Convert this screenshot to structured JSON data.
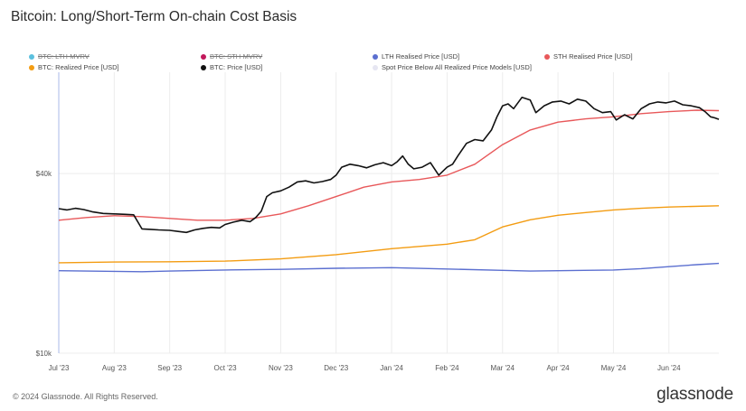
{
  "title": "Bitcoin: Long/Short-Term On-chain Cost Basis",
  "footer": "© 2024 Glassnode. All Rights Reserved.",
  "brand": "glassnode",
  "legend": [
    {
      "label": "BTC: LTH-MVRV",
      "color": "#5bc0de",
      "hidden": true
    },
    {
      "label": "BTC: STH-MVRV",
      "color": "#c2185b",
      "hidden": true
    },
    {
      "label": "LTH Realised Price [USD]",
      "color": "#5b6fd0",
      "hidden": false
    },
    {
      "label": "STH Realised Price [USD]",
      "color": "#e8585a",
      "hidden": false
    },
    {
      "label": "BTC: Realized Price [USD]",
      "color": "#f39c12",
      "hidden": false
    },
    {
      "label": "BTC: Price [USD]",
      "color": "#111111",
      "hidden": false
    },
    {
      "label": "Spot Price Below All Realized Price Models [USD]",
      "color": "#e6e6f2",
      "hidden": false
    }
  ],
  "chart_data": {
    "type": "line",
    "title": "Bitcoin: Long/Short-Term On-chain Cost Basis",
    "yscale": "log",
    "ylim": [
      10000,
      85000
    ],
    "y_ticks": [
      {
        "value": 40000,
        "label": "$40k"
      },
      {
        "value": 10000,
        "label": "$10k"
      }
    ],
    "x_ticks": [
      {
        "label": "Jul '23",
        "t": 0
      },
      {
        "label": "Aug '23",
        "t": 1
      },
      {
        "label": "Sep '23",
        "t": 2
      },
      {
        "label": "Oct '23",
        "t": 3
      },
      {
        "label": "Nov '23",
        "t": 4
      },
      {
        "label": "Dec '23",
        "t": 5
      },
      {
        "label": "Jan '24",
        "t": 6
      },
      {
        "label": "Feb '24",
        "t": 7
      },
      {
        "label": "Mar '24",
        "t": 8
      },
      {
        "label": "Apr '24",
        "t": 9
      },
      {
        "label": "May '24",
        "t": 10
      },
      {
        "label": "Jun '24",
        "t": 11
      }
    ],
    "xlim": [
      0,
      11.9
    ],
    "series": [
      {
        "name": "BTC: Price [USD]",
        "color": "#111111",
        "points": [
          [
            0,
            30500
          ],
          [
            0.15,
            30200
          ],
          [
            0.3,
            30600
          ],
          [
            0.45,
            30300
          ],
          [
            0.6,
            29800
          ],
          [
            0.8,
            29400
          ],
          [
            1.0,
            29300
          ],
          [
            1.2,
            29200
          ],
          [
            1.35,
            29100
          ],
          [
            1.5,
            26100
          ],
          [
            1.65,
            26000
          ],
          [
            1.8,
            25900
          ],
          [
            2.0,
            25800
          ],
          [
            2.15,
            25600
          ],
          [
            2.3,
            25400
          ],
          [
            2.45,
            25900
          ],
          [
            2.6,
            26200
          ],
          [
            2.75,
            26400
          ],
          [
            2.9,
            26300
          ],
          [
            3.0,
            27000
          ],
          [
            3.15,
            27500
          ],
          [
            3.3,
            27900
          ],
          [
            3.45,
            27600
          ],
          [
            3.55,
            28500
          ],
          [
            3.65,
            29900
          ],
          [
            3.75,
            33500
          ],
          [
            3.85,
            34500
          ],
          [
            4.0,
            35000
          ],
          [
            4.15,
            36000
          ],
          [
            4.3,
            37500
          ],
          [
            4.45,
            37800
          ],
          [
            4.6,
            37200
          ],
          [
            4.75,
            37600
          ],
          [
            4.9,
            38200
          ],
          [
            5.0,
            39500
          ],
          [
            5.1,
            42000
          ],
          [
            5.25,
            43000
          ],
          [
            5.4,
            42500
          ],
          [
            5.55,
            41800
          ],
          [
            5.7,
            42800
          ],
          [
            5.85,
            43500
          ],
          [
            6.0,
            42500
          ],
          [
            6.1,
            43800
          ],
          [
            6.2,
            45800
          ],
          [
            6.3,
            43000
          ],
          [
            6.4,
            41500
          ],
          [
            6.55,
            42000
          ],
          [
            6.7,
            43500
          ],
          [
            6.85,
            39500
          ],
          [
            7.0,
            42000
          ],
          [
            7.1,
            43000
          ],
          [
            7.2,
            46000
          ],
          [
            7.35,
            50500
          ],
          [
            7.5,
            52000
          ],
          [
            7.65,
            51500
          ],
          [
            7.8,
            56000
          ],
          [
            7.9,
            62000
          ],
          [
            8.0,
            67500
          ],
          [
            8.1,
            68500
          ],
          [
            8.2,
            66000
          ],
          [
            8.35,
            72000
          ],
          [
            8.5,
            70500
          ],
          [
            8.6,
            64000
          ],
          [
            8.75,
            67500
          ],
          [
            8.9,
            69500
          ],
          [
            9.05,
            70000
          ],
          [
            9.2,
            68500
          ],
          [
            9.35,
            71000
          ],
          [
            9.5,
            70000
          ],
          [
            9.65,
            66000
          ],
          [
            9.8,
            64000
          ],
          [
            9.95,
            64500
          ],
          [
            10.05,
            60500
          ],
          [
            10.2,
            63000
          ],
          [
            10.35,
            61000
          ],
          [
            10.5,
            66000
          ],
          [
            10.65,
            68500
          ],
          [
            10.8,
            69500
          ],
          [
            10.95,
            69000
          ],
          [
            11.1,
            70000
          ],
          [
            11.25,
            68000
          ],
          [
            11.4,
            67500
          ],
          [
            11.55,
            66500
          ],
          [
            11.65,
            64500
          ],
          [
            11.75,
            62000
          ],
          [
            11.82,
            61500
          ],
          [
            11.9,
            60800
          ]
        ]
      },
      {
        "name": "STH Realised Price [USD]",
        "color": "#e8585a",
        "points": [
          [
            0,
            27900
          ],
          [
            0.5,
            28500
          ],
          [
            1.0,
            28900
          ],
          [
            1.5,
            28700
          ],
          [
            2.0,
            28300
          ],
          [
            2.5,
            27900
          ],
          [
            3.0,
            27900
          ],
          [
            3.5,
            28300
          ],
          [
            4.0,
            29300
          ],
          [
            4.5,
            31200
          ],
          [
            5.0,
            33500
          ],
          [
            5.5,
            36000
          ],
          [
            6.0,
            37500
          ],
          [
            6.5,
            38200
          ],
          [
            7.0,
            39500
          ],
          [
            7.5,
            43000
          ],
          [
            8.0,
            50000
          ],
          [
            8.5,
            56000
          ],
          [
            9.0,
            59500
          ],
          [
            9.5,
            61000
          ],
          [
            10.0,
            62000
          ],
          [
            10.5,
            63500
          ],
          [
            11.0,
            64500
          ],
          [
            11.5,
            65200
          ],
          [
            11.9,
            65000
          ]
        ]
      },
      {
        "name": "BTC: Realized Price [USD]",
        "color": "#f39c12",
        "points": [
          [
            0,
            20100
          ],
          [
            1.0,
            20200
          ],
          [
            2.0,
            20250
          ],
          [
            3.0,
            20350
          ],
          [
            4.0,
            20700
          ],
          [
            5.0,
            21400
          ],
          [
            6.0,
            22400
          ],
          [
            7.0,
            23200
          ],
          [
            7.5,
            24000
          ],
          [
            8.0,
            26500
          ],
          [
            8.5,
            28000
          ],
          [
            9.0,
            29000
          ],
          [
            9.5,
            29600
          ],
          [
            10.0,
            30200
          ],
          [
            10.5,
            30600
          ],
          [
            11.0,
            30900
          ],
          [
            11.9,
            31200
          ]
        ]
      },
      {
        "name": "LTH Realised Price [USD]",
        "color": "#5b6fd0",
        "points": [
          [
            0,
            18900
          ],
          [
            1.0,
            18800
          ],
          [
            1.5,
            18750
          ],
          [
            2.0,
            18850
          ],
          [
            3.0,
            19000
          ],
          [
            4.0,
            19100
          ],
          [
            5.0,
            19250
          ],
          [
            6.0,
            19350
          ],
          [
            7.0,
            19150
          ],
          [
            8.0,
            18950
          ],
          [
            8.5,
            18850
          ],
          [
            9.0,
            18900
          ],
          [
            10.0,
            19000
          ],
          [
            10.5,
            19200
          ],
          [
            11.0,
            19500
          ],
          [
            11.5,
            19800
          ],
          [
            11.9,
            20000
          ]
        ]
      }
    ]
  }
}
